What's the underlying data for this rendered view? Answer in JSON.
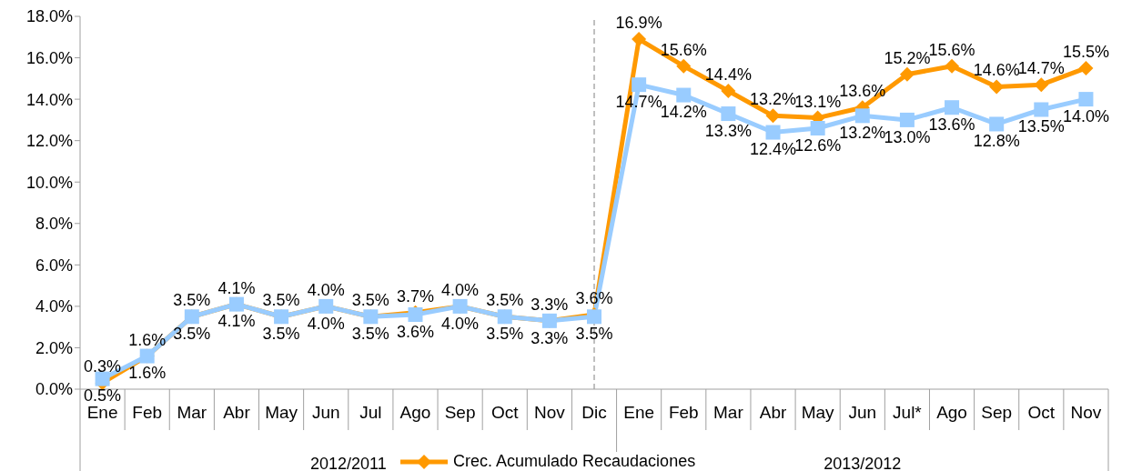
{
  "chart_data": {
    "type": "line",
    "categories": [
      "Ene",
      "Feb",
      "Mar",
      "Abr",
      "May",
      "Jun",
      "Jul",
      "Ago",
      "Sep",
      "Oct",
      "Nov",
      "Dic",
      "Ene",
      "Feb",
      "Mar",
      "Abr",
      "May",
      "Jun",
      "Jul*",
      "Ago",
      "Sep",
      "Oct",
      "Nov"
    ],
    "series": [
      {
        "name": "Crec. Acumulado Recaudaciones",
        "color": "#ff9900",
        "marker": "diamond",
        "values": [
          0.3,
          1.6,
          3.5,
          4.1,
          3.5,
          4.0,
          3.5,
          3.7,
          4.0,
          3.5,
          3.3,
          3.6,
          16.9,
          15.6,
          14.4,
          13.2,
          13.1,
          13.6,
          15.2,
          15.6,
          14.6,
          14.7,
          15.5
        ],
        "value_labels": [
          "0.3%",
          "1.6%",
          "3.5%",
          "4.1%",
          "3.5%",
          "4.0%",
          "3.5%",
          "3.7%",
          "4.0%",
          "3.5%",
          "3.3%",
          "3.6%",
          "16.9%",
          "15.6%",
          "14.4%",
          "13.2%",
          "13.1%",
          "13.6%",
          "15.2%",
          "15.6%",
          "14.6%",
          "14.7%",
          "15.5%"
        ]
      },
      {
        "color": "#99ccff",
        "marker": "square",
        "values": [
          0.5,
          1.6,
          3.5,
          4.1,
          3.5,
          4.0,
          3.5,
          3.6,
          4.0,
          3.5,
          3.3,
          3.5,
          14.7,
          14.2,
          13.3,
          12.4,
          12.6,
          13.2,
          13.0,
          13.6,
          12.8,
          13.5,
          14.0
        ],
        "value_labels": [
          "0.5%",
          "1.6%",
          "3.5%",
          "4.1%",
          "3.5%",
          "4.0%",
          "3.5%",
          "3.6%",
          "4.0%",
          "3.5%",
          "3.3%",
          "3.5%",
          "14.7%",
          "14.2%",
          "13.3%",
          "12.4%",
          "12.6%",
          "13.2%",
          "13.0%",
          "13.6%",
          "12.8%",
          "13.5%",
          "14.0%"
        ]
      }
    ],
    "ylim": [
      0,
      18
    ],
    "yticks": [
      {
        "value": 0,
        "label": "0.0%"
      },
      {
        "value": 2,
        "label": "2.0%"
      },
      {
        "value": 4,
        "label": "4.0%"
      },
      {
        "value": 6,
        "label": "6.0%"
      },
      {
        "value": 8,
        "label": "8.0%"
      },
      {
        "value": 10,
        "label": "10.0%"
      },
      {
        "value": 12,
        "label": "12.0%"
      },
      {
        "value": 14,
        "label": "14.0%"
      },
      {
        "value": 16,
        "label": "16.0%"
      },
      {
        "value": 18,
        "label": "18.0%"
      }
    ],
    "ref_lines": [
      {
        "axis": "x",
        "value": "Dic",
        "color": "#808080",
        "line_style": "dashed"
      }
    ],
    "annotations": [
      "2012/2011",
      "2013/2012"
    ],
    "grid": false,
    "legend": "bottom",
    "line_style": "solid"
  }
}
